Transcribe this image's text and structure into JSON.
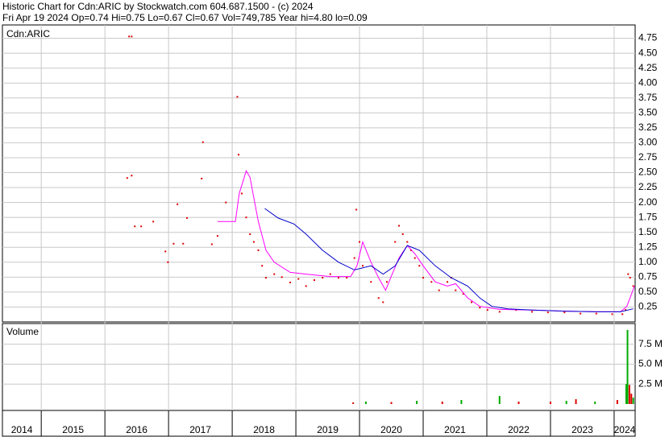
{
  "chart_data": {
    "type": "stock",
    "title": "Historic Chart for Cdn:ARIC by Stockwatch.com 604.687.1500 - (c) 2024",
    "subtitle": "Fri Apr 19 2024   Op=0.74   Hi=0.75   Lo=0.67   Cl=0.67   Vol=749,785   Year hi=4.80   lo=0.09",
    "price_label": "Cdn:ARIC",
    "volume_label": "Volume",
    "grid": true,
    "xlim": [
      2014.39,
      2024.33
    ],
    "xticks": [
      2014,
      2015,
      2016,
      2017,
      2018,
      2019,
      2020,
      2021,
      2022,
      2023,
      2024
    ],
    "ylim": [
      0,
      5
    ],
    "yticks": [
      0.25,
      {
        "value": 0.5,
        "label": "0.50"
      },
      0.75,
      {
        "value": 1,
        "label": "1.00"
      },
      1.25,
      {
        "value": 1.5,
        "label": "1.50"
      },
      1.75,
      {
        "value": 2,
        "label": "2.00"
      },
      2.25,
      {
        "value": 2.5,
        "label": "2.50"
      },
      2.75,
      {
        "value": 3,
        "label": "3.00"
      },
      3.25,
      {
        "value": 3.5,
        "label": "3.50"
      },
      3.75,
      {
        "value": 4,
        "label": "4.00"
      },
      4.25,
      {
        "value": 4.5,
        "label": "4.50"
      },
      4.75
    ],
    "series": [
      {
        "style": "dots",
        "color": "#e00000",
        "x": [
          2016.38,
          2016.42,
          2016.35,
          2016.42,
          2016.47,
          2016.57,
          2016.76,
          2016.95,
          2016.99,
          2017.08,
          2017.14,
          2017.23,
          2017.29,
          2017.52,
          2017.54,
          2017.68,
          2017.77,
          2017.9,
          2018.08,
          2018.1,
          2018.15,
          2018.22,
          2018.28,
          2018.34,
          2018.41,
          2018.47,
          2018.53,
          2018.66,
          2018.78,
          2018.91,
          2019.04,
          2019.16,
          2019.29,
          2019.42,
          2019.54,
          2019.67,
          2019.8,
          2019.92,
          2019.95,
          2020.0,
          2020.05,
          2020.18,
          2020.3,
          2020.37,
          2020.43,
          2020.56,
          2020.62,
          2020.68,
          2020.75,
          2020.81,
          2020.87,
          2020.94,
          2021.0,
          2021.13,
          2021.25,
          2021.38,
          2021.44,
          2021.51,
          2021.63,
          2021.76,
          2021.89,
          2022.01,
          2022.2,
          2022.46,
          2022.71,
          2022.96,
          2023.22,
          2023.47,
          2023.72,
          2023.97,
          2024.13,
          2024.18,
          2024.22,
          2024.25,
          2024.3
        ],
        "values": [
          4.78,
          4.78,
          2.41,
          2.45,
          1.6,
          1.6,
          1.68,
          1.18,
          1.0,
          1.31,
          1.97,
          1.31,
          1.74,
          2.4,
          3.01,
          1.3,
          1.44,
          2.0,
          3.77,
          2.8,
          2.15,
          1.75,
          1.47,
          1.34,
          1.2,
          0.94,
          0.74,
          0.8,
          0.75,
          0.66,
          0.72,
          0.6,
          0.7,
          0.74,
          0.8,
          0.74,
          0.74,
          1.07,
          1.88,
          1.34,
          0.94,
          0.67,
          0.4,
          0.33,
          0.67,
          1.34,
          1.61,
          1.47,
          1.34,
          1.2,
          1.07,
          0.94,
          0.74,
          0.67,
          0.53,
          0.67,
          0.74,
          0.53,
          0.47,
          0.33,
          0.24,
          0.2,
          0.17,
          0.2,
          0.17,
          0.16,
          0.16,
          0.14,
          0.14,
          0.13,
          0.13,
          0.2,
          0.8,
          0.74,
          0.6
        ]
      },
      {
        "style": "line",
        "color": "#ff00ff",
        "x": [
          2017.77,
          2018.05,
          2018.11,
          2018.22,
          2018.28,
          2018.34,
          2018.41,
          2018.53,
          2018.66,
          2018.91,
          2019.16,
          2019.54,
          2019.86,
          2019.96,
          2020.05,
          2020.18,
          2020.3,
          2020.41,
          2020.49,
          2020.62,
          2020.75,
          2020.87,
          2021.0,
          2021.19,
          2021.38,
          2021.51,
          2021.7,
          2021.89,
          2022.2,
          2022.71,
          2023.22,
          2023.72,
          2024.1,
          2024.2,
          2024.32
        ],
        "values": [
          1.68,
          1.68,
          2.15,
          2.53,
          2.42,
          2.08,
          1.68,
          1.2,
          1.0,
          0.83,
          0.8,
          0.76,
          0.76,
          0.94,
          1.34,
          1.0,
          0.74,
          0.53,
          0.74,
          1.07,
          1.28,
          1.14,
          0.94,
          0.67,
          0.6,
          0.64,
          0.4,
          0.26,
          0.21,
          0.2,
          0.18,
          0.17,
          0.17,
          0.26,
          0.6
        ]
      },
      {
        "style": "line",
        "color": "#0000cc",
        "x": [
          2018.51,
          2018.72,
          2018.97,
          2019.16,
          2019.42,
          2019.67,
          2019.92,
          2020.18,
          2020.37,
          2020.56,
          2020.75,
          2020.94,
          2021.19,
          2021.44,
          2021.7,
          2021.89,
          2022.08,
          2022.33,
          2022.71,
          2023.22,
          2023.72,
          2024.1,
          2024.3
        ],
        "values": [
          1.9,
          1.74,
          1.64,
          1.47,
          1.2,
          1.0,
          0.87,
          0.94,
          0.8,
          0.94,
          1.28,
          1.2,
          0.94,
          0.74,
          0.6,
          0.4,
          0.26,
          0.22,
          0.2,
          0.18,
          0.17,
          0.17,
          0.22
        ]
      }
    ],
    "volume": {
      "ylim": [
        0,
        10000000
      ],
      "yticks": [
        {
          "value": 2500000,
          "label": "2.5 M"
        },
        {
          "value": 5000000,
          "label": "5.0 M"
        },
        {
          "value": 7500000,
          "label": "7.5 M"
        }
      ],
      "x": [
        2019.9,
        2020.1,
        2020.5,
        2020.9,
        2021.3,
        2021.6,
        2022.2,
        2022.5,
        2023.0,
        2023.25,
        2023.4,
        2023.7,
        2024.05,
        2024.19,
        2024.21,
        2024.24,
        2024.27,
        2024.3
      ],
      "values": [
        200000,
        300000,
        250000,
        400000,
        300000,
        500000,
        1000000,
        300000,
        300000,
        400000,
        600000,
        300000,
        500000,
        2500000,
        9300000,
        2400000,
        1300000,
        800000
      ],
      "colors": [
        "#dd0000",
        "#00aa00",
        "#dd0000",
        "#00aa00",
        "#dd0000",
        "#00aa00",
        "#00aa00",
        "#dd0000",
        "#dd0000",
        "#00aa00",
        "#dd0000",
        "#00aa00",
        "#dd0000",
        "#00aa00",
        "#00aa00",
        "#dd0000",
        "#dd0000",
        "#00aa00"
      ]
    }
  }
}
